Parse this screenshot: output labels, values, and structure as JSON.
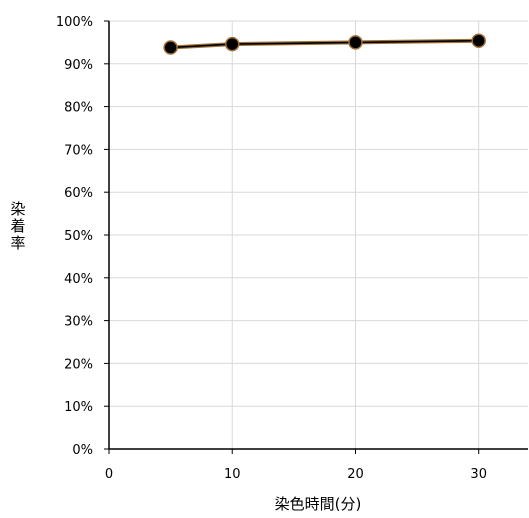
{
  "chart_data": {
    "type": "line",
    "title": "",
    "xlabel": "染色時間(分)",
    "ylabel": "染着率",
    "x_ticks": [
      "0",
      "10",
      "20",
      "30"
    ],
    "y_ticks": [
      "0%",
      "10%",
      "20%",
      "30%",
      "40%",
      "50%",
      "60%",
      "70%",
      "80%",
      "90%",
      "100%"
    ],
    "xlim": [
      0,
      34
    ],
    "ylim": [
      0,
      1
    ],
    "grid": true,
    "series": [
      {
        "x": [
          5,
          10,
          20,
          30
        ],
        "y": [
          0.938,
          0.946,
          0.95,
          0.954
        ],
        "color": "#000000",
        "edge_color": "#a0713a"
      }
    ]
  }
}
